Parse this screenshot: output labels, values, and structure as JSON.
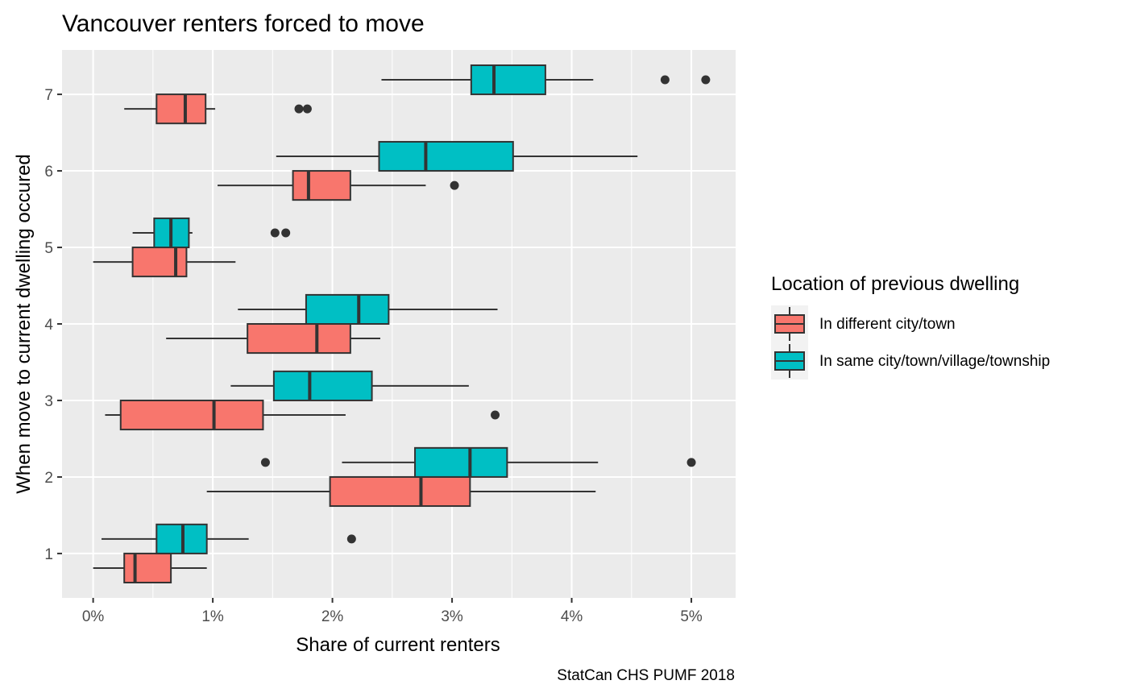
{
  "chart_data": {
    "type": "boxplot",
    "orientation": "horizontal",
    "title": "Vancouver renters forced to move",
    "xlabel": "Share of current renters",
    "ylabel": "When move to current dwelling occured",
    "caption": "StatCan CHS PUMF 2018",
    "xlim": [
      -0.0026,
      0.0537
    ],
    "ylim": [
      0.42,
      7.58
    ],
    "x_ticks": [
      0,
      0.01,
      0.02,
      0.03,
      0.04,
      0.05
    ],
    "x_tick_labels": [
      "0%",
      "1%",
      "2%",
      "3%",
      "4%",
      "5%"
    ],
    "y_ticks": [
      1,
      2,
      3,
      4,
      5,
      6,
      7
    ],
    "y_tick_labels": [
      "1",
      "2",
      "3",
      "4",
      "5",
      "6",
      "7"
    ],
    "legend": {
      "title": "Location of previous dwelling",
      "position": "right"
    },
    "series": [
      {
        "name": "In different city/town",
        "color": "#F8766D",
        "boxes": [
          {
            "category": 1,
            "min": 0.0,
            "q1": 0.0026,
            "median": 0.0035,
            "q3": 0.0065,
            "max": 0.0095,
            "outliers": []
          },
          {
            "category": 2,
            "min": 0.0095,
            "q1": 0.0198,
            "median": 0.0274,
            "q3": 0.0315,
            "max": 0.042,
            "outliers": []
          },
          {
            "category": 3,
            "min": 0.001,
            "q1": 0.0023,
            "median": 0.0101,
            "q3": 0.0142,
            "max": 0.0211,
            "outliers": [
              0.0336
            ]
          },
          {
            "category": 4,
            "min": 0.0061,
            "q1": 0.0129,
            "median": 0.0187,
            "q3": 0.0215,
            "max": 0.024,
            "outliers": []
          },
          {
            "category": 5,
            "min": 0.0,
            "q1": 0.0033,
            "median": 0.0069,
            "q3": 0.0078,
            "max": 0.0119,
            "outliers": []
          },
          {
            "category": 6,
            "min": 0.0104,
            "q1": 0.0167,
            "median": 0.018,
            "q3": 0.0215,
            "max": 0.0278,
            "outliers": [
              0.0302
            ]
          },
          {
            "category": 7,
            "min": 0.0026,
            "q1": 0.0053,
            "median": 0.0077,
            "q3": 0.0094,
            "max": 0.0102,
            "outliers": [
              0.0172,
              0.0179
            ]
          }
        ]
      },
      {
        "name": "In same city/town/village/township",
        "color": "#00BFC4",
        "boxes": [
          {
            "category": 1,
            "min": 0.0007,
            "q1": 0.0053,
            "median": 0.0075,
            "q3": 0.0095,
            "max": 0.013,
            "outliers": [
              0.0216
            ]
          },
          {
            "category": 2,
            "min": 0.0208,
            "q1": 0.0269,
            "median": 0.0315,
            "q3": 0.0346,
            "max": 0.0422,
            "outliers": [
              0.0144,
              0.05
            ]
          },
          {
            "category": 3,
            "min": 0.0115,
            "q1": 0.0151,
            "median": 0.0181,
            "q3": 0.0233,
            "max": 0.0314,
            "outliers": []
          },
          {
            "category": 4,
            "min": 0.0121,
            "q1": 0.0178,
            "median": 0.0222,
            "q3": 0.0247,
            "max": 0.0338,
            "outliers": []
          },
          {
            "category": 5,
            "min": 0.0033,
            "q1": 0.0051,
            "median": 0.0065,
            "q3": 0.008,
            "max": 0.0083,
            "outliers": [
              0.0152,
              0.0161
            ]
          },
          {
            "category": 6,
            "min": 0.0153,
            "q1": 0.0239,
            "median": 0.0278,
            "q3": 0.0351,
            "max": 0.0455,
            "outliers": []
          },
          {
            "category": 7,
            "min": 0.0241,
            "q1": 0.0316,
            "median": 0.0335,
            "q3": 0.0378,
            "max": 0.0418,
            "outliers": [
              0.0478,
              0.0512
            ]
          }
        ]
      }
    ]
  }
}
